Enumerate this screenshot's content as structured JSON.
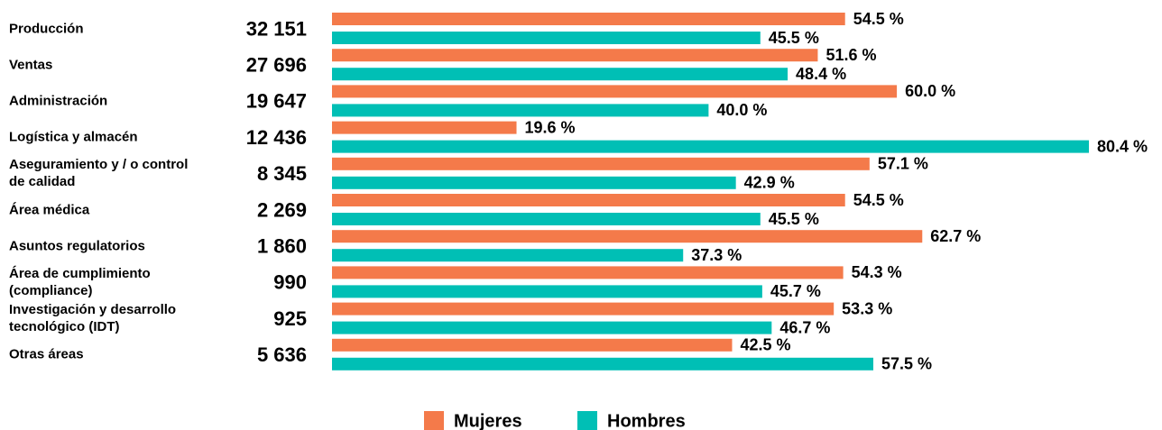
{
  "chart_data": {
    "type": "bar",
    "orientation": "horizontal",
    "categories": [
      "Producción",
      "Ventas",
      "Administración",
      "Logística y almacén",
      "Aseguramiento y / o control\nde calidad",
      "Área médica",
      "Asuntos regulatorios",
      "Área de cumplimiento\n(compliance)",
      "Investigación y desarrollo\ntecnológico (IDT)",
      "Otras áreas"
    ],
    "totals": [
      "32 151",
      "27 696",
      "19 647",
      "12 436",
      "8 345",
      "2 269",
      "1 860",
      "990",
      "925",
      "5 636"
    ],
    "series": [
      {
        "name": "Mujeres",
        "color": "#f47a4a",
        "values": [
          54.5,
          51.6,
          60.0,
          19.6,
          57.1,
          54.5,
          62.7,
          54.3,
          53.3,
          42.5
        ],
        "value_labels": [
          "54.5 %",
          "51.6 %",
          "60.0 %",
          "19.6 %",
          "57.1 %",
          "54.5 %",
          "62.7 %",
          "54.3 %",
          "53.3 %",
          "42.5 %"
        ]
      },
      {
        "name": "Hombres",
        "color": "#00bfb5",
        "values": [
          45.5,
          48.4,
          40.0,
          80.4,
          42.9,
          45.5,
          37.3,
          45.7,
          46.7,
          57.5
        ],
        "value_labels": [
          "45.5 %",
          "48.4 %",
          "40.0 %",
          "80.4 %",
          "42.9 %",
          "45.5 %",
          "37.3 %",
          "45.7 %",
          "46.7 %",
          "57.5 %"
        ]
      }
    ],
    "legend": "bottom"
  }
}
